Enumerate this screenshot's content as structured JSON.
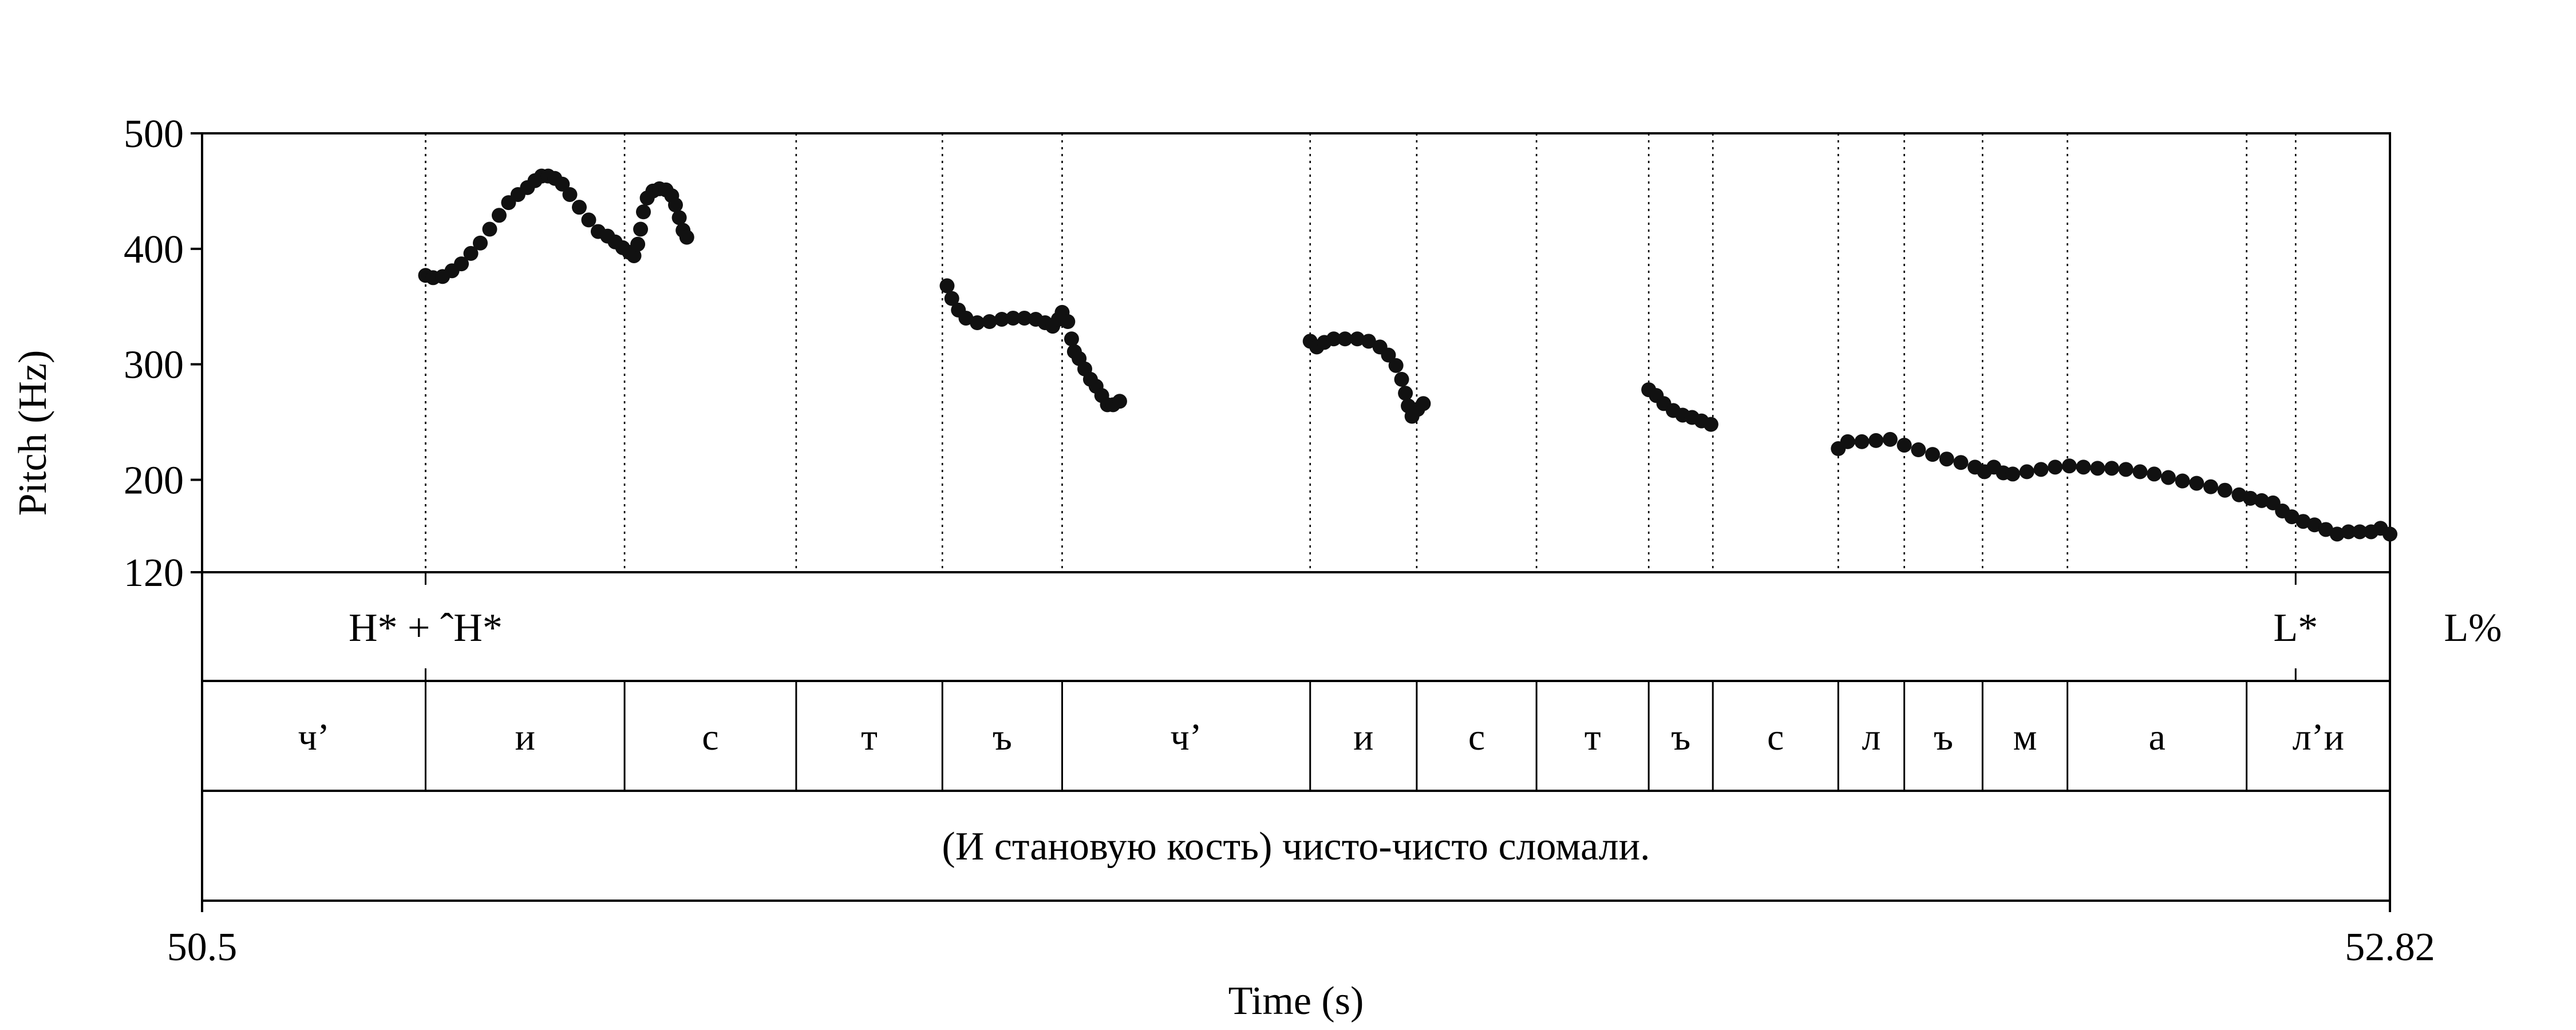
{
  "chart_data": {
    "type": "scatter",
    "xlabel": "Time (s)",
    "ylabel": "Pitch (Hz)",
    "xlim": [
      50.5,
      52.82
    ],
    "ylim": [
      120,
      500
    ],
    "x_ticks": [
      "50.5",
      "52.82"
    ],
    "y_ticks": [
      {
        "value": 500,
        "label": "500"
      },
      {
        "value": 400,
        "label": "400"
      },
      {
        "value": 300,
        "label": "300"
      },
      {
        "value": 200,
        "label": "200"
      },
      {
        "value": 120,
        "label": "120"
      }
    ],
    "marker_color": "#111111",
    "tone_tier": [
      {
        "time": 50.737,
        "label": "H* + ˆH*"
      },
      {
        "time": 52.72,
        "label": "L*"
      },
      {
        "time": 52.908,
        "label": "L%"
      }
    ],
    "segments": [
      {
        "start": 50.5,
        "end": 50.737,
        "label": "ч’"
      },
      {
        "start": 50.737,
        "end": 50.948,
        "label": "и"
      },
      {
        "start": 50.948,
        "end": 51.13,
        "label": "с"
      },
      {
        "start": 51.13,
        "end": 51.285,
        "label": "т"
      },
      {
        "start": 51.285,
        "end": 51.412,
        "label": "ъ"
      },
      {
        "start": 51.412,
        "end": 51.675,
        "label": "ч’"
      },
      {
        "start": 51.675,
        "end": 51.788,
        "label": "и"
      },
      {
        "start": 51.788,
        "end": 51.915,
        "label": "с"
      },
      {
        "start": 51.915,
        "end": 52.034,
        "label": "т"
      },
      {
        "start": 52.034,
        "end": 52.102,
        "label": "ъ"
      },
      {
        "start": 52.102,
        "end": 52.235,
        "label": "с"
      },
      {
        "start": 52.235,
        "end": 52.305,
        "label": "л"
      },
      {
        "start": 52.305,
        "end": 52.388,
        "label": "ъ"
      },
      {
        "start": 52.388,
        "end": 52.478,
        "label": "м"
      },
      {
        "start": 52.478,
        "end": 52.668,
        "label": "а"
      },
      {
        "start": 52.668,
        "end": 52.82,
        "label": "л’и"
      }
    ],
    "transcription": "(И становую кость) чисто-чисто сломали.",
    "pitch_series": [
      {
        "x": 50.737,
        "y": 377
      },
      {
        "x": 50.745,
        "y": 375
      },
      {
        "x": 50.755,
        "y": 376
      },
      {
        "x": 50.765,
        "y": 381
      },
      {
        "x": 50.775,
        "y": 387
      },
      {
        "x": 50.785,
        "y": 396
      },
      {
        "x": 50.795,
        "y": 405
      },
      {
        "x": 50.805,
        "y": 417
      },
      {
        "x": 50.815,
        "y": 429
      },
      {
        "x": 50.825,
        "y": 440
      },
      {
        "x": 50.835,
        "y": 447
      },
      {
        "x": 50.845,
        "y": 453
      },
      {
        "x": 50.853,
        "y": 459
      },
      {
        "x": 50.86,
        "y": 463
      },
      {
        "x": 50.867,
        "y": 463
      },
      {
        "x": 50.874,
        "y": 461
      },
      {
        "x": 50.882,
        "y": 456
      },
      {
        "x": 50.89,
        "y": 447
      },
      {
        "x": 50.9,
        "y": 436
      },
      {
        "x": 50.91,
        "y": 425
      },
      {
        "x": 50.92,
        "y": 415
      },
      {
        "x": 50.93,
        "y": 411
      },
      {
        "x": 50.938,
        "y": 406
      },
      {
        "x": 50.946,
        "y": 401
      },
      {
        "x": 50.953,
        "y": 397
      },
      {
        "x": 50.958,
        "y": 394
      },
      {
        "x": 50.962,
        "y": 404
      },
      {
        "x": 50.965,
        "y": 417
      },
      {
        "x": 50.968,
        "y": 432
      },
      {
        "x": 50.972,
        "y": 444
      },
      {
        "x": 50.978,
        "y": 450
      },
      {
        "x": 50.985,
        "y": 452
      },
      {
        "x": 50.992,
        "y": 451
      },
      {
        "x": 50.998,
        "y": 446
      },
      {
        "x": 51.002,
        "y": 438
      },
      {
        "x": 51.006,
        "y": 427
      },
      {
        "x": 51.01,
        "y": 416
      },
      {
        "x": 51.014,
        "y": 410
      },
      {
        "x": 51.29,
        "y": 368
      },
      {
        "x": 51.295,
        "y": 357
      },
      {
        "x": 51.302,
        "y": 347
      },
      {
        "x": 51.31,
        "y": 340
      },
      {
        "x": 51.322,
        "y": 336
      },
      {
        "x": 51.335,
        "y": 337
      },
      {
        "x": 51.348,
        "y": 339
      },
      {
        "x": 51.36,
        "y": 340
      },
      {
        "x": 51.372,
        "y": 340
      },
      {
        "x": 51.384,
        "y": 339
      },
      {
        "x": 51.394,
        "y": 336
      },
      {
        "x": 51.402,
        "y": 333
      },
      {
        "x": 51.408,
        "y": 339
      },
      {
        "x": 51.412,
        "y": 345
      },
      {
        "x": 51.418,
        "y": 337
      },
      {
        "x": 51.422,
        "y": 322
      },
      {
        "x": 51.425,
        "y": 311
      },
      {
        "x": 51.43,
        "y": 305
      },
      {
        "x": 51.436,
        "y": 296
      },
      {
        "x": 51.442,
        "y": 287
      },
      {
        "x": 51.448,
        "y": 281
      },
      {
        "x": 51.454,
        "y": 273
      },
      {
        "x": 51.46,
        "y": 265
      },
      {
        "x": 51.466,
        "y": 265
      },
      {
        "x": 51.473,
        "y": 268
      },
      {
        "x": 51.675,
        "y": 320
      },
      {
        "x": 51.682,
        "y": 315
      },
      {
        "x": 51.69,
        "y": 319
      },
      {
        "x": 51.7,
        "y": 322
      },
      {
        "x": 51.712,
        "y": 322
      },
      {
        "x": 51.725,
        "y": 322
      },
      {
        "x": 51.737,
        "y": 320
      },
      {
        "x": 51.749,
        "y": 315
      },
      {
        "x": 51.758,
        "y": 308
      },
      {
        "x": 51.766,
        "y": 299
      },
      {
        "x": 51.772,
        "y": 287
      },
      {
        "x": 51.776,
        "y": 275
      },
      {
        "x": 51.779,
        "y": 264
      },
      {
        "x": 51.783,
        "y": 255
      },
      {
        "x": 51.789,
        "y": 261
      },
      {
        "x": 51.795,
        "y": 266
      },
      {
        "x": 52.034,
        "y": 278
      },
      {
        "x": 52.042,
        "y": 273
      },
      {
        "x": 52.05,
        "y": 266
      },
      {
        "x": 52.06,
        "y": 260
      },
      {
        "x": 52.07,
        "y": 256
      },
      {
        "x": 52.08,
        "y": 254
      },
      {
        "x": 52.09,
        "y": 251
      },
      {
        "x": 52.1,
        "y": 248
      },
      {
        "x": 52.235,
        "y": 227
      },
      {
        "x": 52.245,
        "y": 233
      },
      {
        "x": 52.26,
        "y": 233
      },
      {
        "x": 52.275,
        "y": 234
      },
      {
        "x": 52.29,
        "y": 235
      },
      {
        "x": 52.305,
        "y": 230
      },
      {
        "x": 52.32,
        "y": 226
      },
      {
        "x": 52.335,
        "y": 222
      },
      {
        "x": 52.35,
        "y": 218
      },
      {
        "x": 52.365,
        "y": 215
      },
      {
        "x": 52.38,
        "y": 211
      },
      {
        "x": 52.39,
        "y": 207
      },
      {
        "x": 52.4,
        "y": 211
      },
      {
        "x": 52.41,
        "y": 206
      },
      {
        "x": 52.42,
        "y": 205
      },
      {
        "x": 52.435,
        "y": 207
      },
      {
        "x": 52.45,
        "y": 209
      },
      {
        "x": 52.465,
        "y": 211
      },
      {
        "x": 52.48,
        "y": 212
      },
      {
        "x": 52.495,
        "y": 211
      },
      {
        "x": 52.51,
        "y": 210
      },
      {
        "x": 52.525,
        "y": 210
      },
      {
        "x": 52.54,
        "y": 209
      },
      {
        "x": 52.555,
        "y": 207
      },
      {
        "x": 52.57,
        "y": 205
      },
      {
        "x": 52.585,
        "y": 202
      },
      {
        "x": 52.6,
        "y": 199
      },
      {
        "x": 52.615,
        "y": 197
      },
      {
        "x": 52.63,
        "y": 194
      },
      {
        "x": 52.645,
        "y": 191
      },
      {
        "x": 52.66,
        "y": 187
      },
      {
        "x": 52.672,
        "y": 184
      },
      {
        "x": 52.684,
        "y": 182
      },
      {
        "x": 52.696,
        "y": 180
      },
      {
        "x": 52.706,
        "y": 173
      },
      {
        "x": 52.716,
        "y": 168
      },
      {
        "x": 52.728,
        "y": 164
      },
      {
        "x": 52.74,
        "y": 161
      },
      {
        "x": 52.752,
        "y": 157
      },
      {
        "x": 52.764,
        "y": 153
      },
      {
        "x": 52.776,
        "y": 155
      },
      {
        "x": 52.788,
        "y": 155
      },
      {
        "x": 52.8,
        "y": 155
      },
      {
        "x": 52.81,
        "y": 158
      },
      {
        "x": 52.82,
        "y": 153
      }
    ]
  }
}
